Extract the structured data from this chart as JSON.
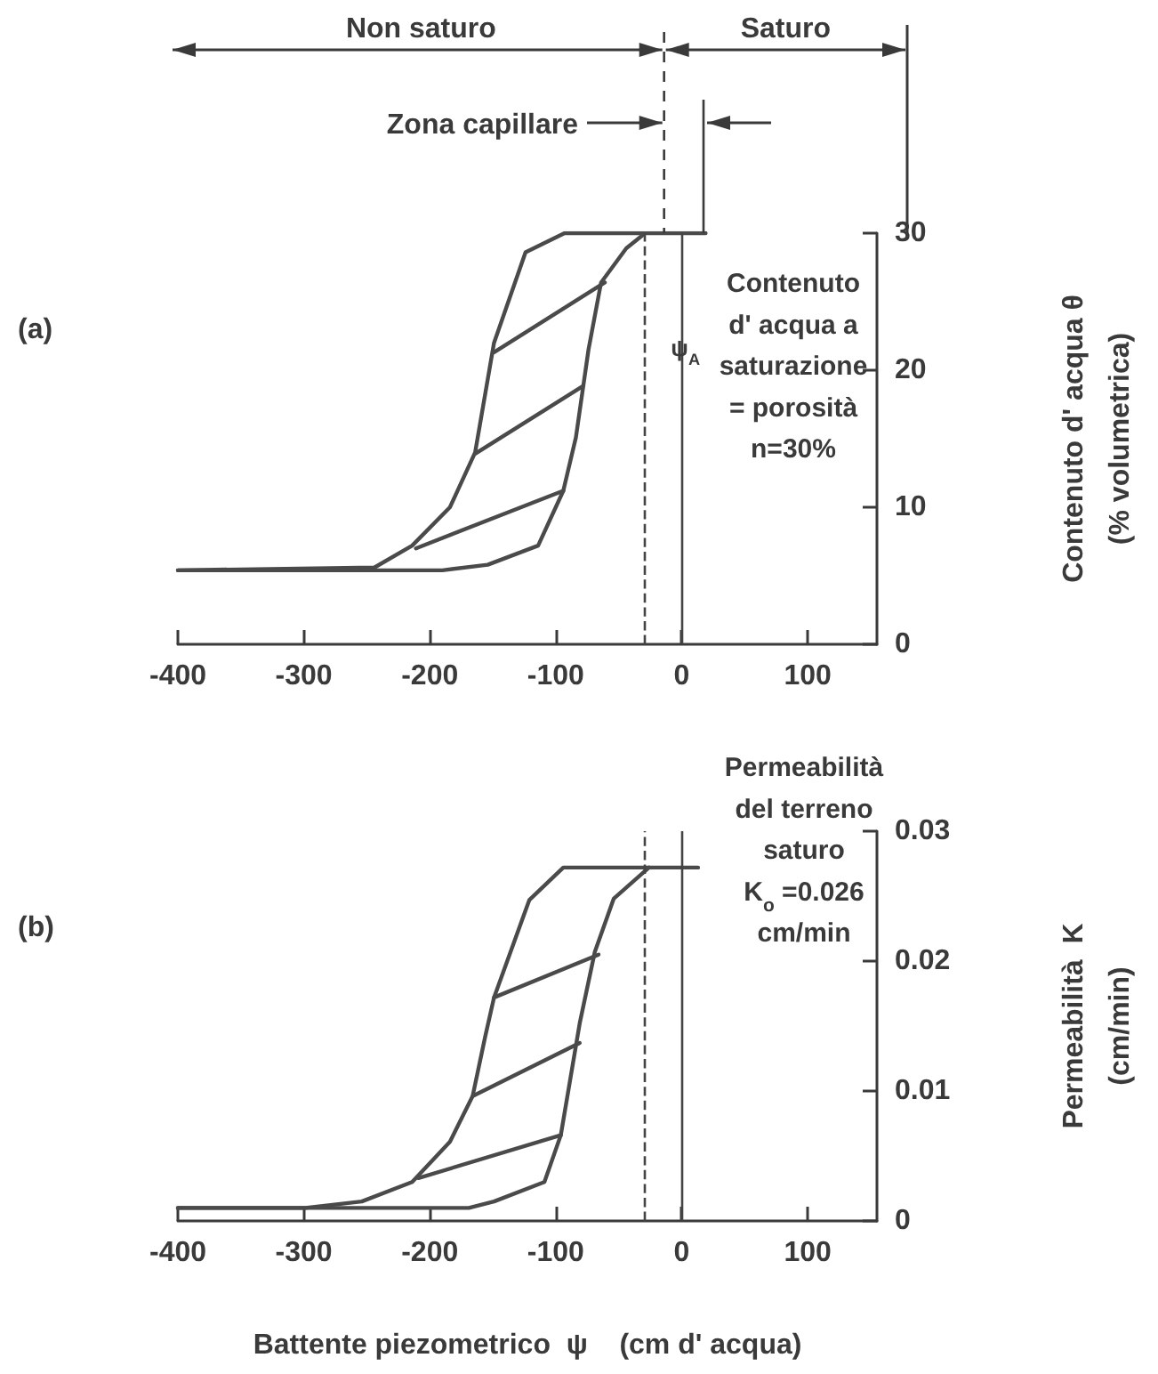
{
  "chart_data": [
    {
      "type": "line",
      "ylabel": "Contenuto d' acqua θ\n(% volumetrica)",
      "annotations": [
        "(a)",
        "Non saturo",
        "Saturo",
        "Zona capillare",
        "Contenuto\nd' acqua a\nsaturazione\n= porosità\nn=30%"
      ],
      "xlim": [
        -400,
        155
      ],
      "xticks": [
        -400,
        -300,
        -200,
        -100,
        0,
        100
      ],
      "ylim": [
        0,
        30
      ],
      "yticks": [
        0,
        10,
        20,
        30
      ],
      "grid": false,
      "marker": "none",
      "line_style": "solid",
      "ref_lines": [
        {
          "axis": "x",
          "value": -30,
          "label": "ψ$_{A}$",
          "line_style": "dashed",
          "color": "#444444"
        },
        {
          "axis": "x",
          "value": 0,
          "color": "#444444",
          "line_style": "solid"
        }
      ],
      "series": [
        {
          "color": "#4a4a4a",
          "x": [
            -400,
            -244,
            -214,
            -184,
            -164,
            -149,
            -124,
            -93,
            -30
          ],
          "values": [
            5.4,
            5.6,
            7.2,
            10,
            14,
            22,
            28.6,
            30,
            30
          ]
        },
        {
          "color": "#4a4a4a",
          "x": [
            -400,
            -190,
            -154,
            -114,
            -94,
            -84,
            -74,
            -64,
            -44,
            -29,
            19
          ],
          "values": [
            5.4,
            5.4,
            5.8,
            7.2,
            11.2,
            15.1,
            21.5,
            26.4,
            28.9,
            30,
            30
          ]
        },
        {
          "color": "#4a4a4a",
          "x": [
            -211,
            -94
          ],
          "values": [
            7,
            11.2
          ]
        },
        {
          "color": "#4a4a4a",
          "x": [
            -164,
            -79
          ],
          "values": [
            13.9,
            18.8
          ]
        },
        {
          "color": "#4a4a4a",
          "x": [
            -149,
            -61
          ],
          "values": [
            21.3,
            26.4
          ]
        }
      ]
    },
    {
      "type": "line",
      "xlabel": "Battente piezometrico  ψ    (cm d' acqua)",
      "ylabel": "Permeabilità  K\n(cm/min)",
      "annotations": [
        "(b)",
        "Permeabilità\ndel terreno\nsaturo\nK$_{o}$ =0.026\ncm/min"
      ],
      "xlim": [
        -400,
        155
      ],
      "xticks": [
        -400,
        -300,
        -200,
        -100,
        0,
        100
      ],
      "ylim": [
        0,
        0.03
      ],
      "yticks": [
        0,
        0.01,
        0.02,
        0.03
      ],
      "grid": false,
      "marker": "none",
      "line_style": "solid",
      "ref_lines": [
        {
          "axis": "x",
          "value": -30,
          "line_style": "dashed",
          "color": "#444444"
        },
        {
          "axis": "x",
          "value": 0,
          "color": "#444444",
          "line_style": "solid"
        }
      ],
      "series": [
        {
          "color": "#4a4a4a",
          "x": [
            -400,
            -299,
            -254,
            -214,
            -184,
            -166,
            -156,
            -149,
            -121,
            -94,
            13
          ],
          "values": [
            0.001,
            0.001,
            0.0015,
            0.003,
            0.0061,
            0.0096,
            0.0142,
            0.0172,
            0.0247,
            0.0272,
            0.0272
          ]
        },
        {
          "color": "#4a4a4a",
          "x": [
            -400,
            -169,
            -149,
            -109,
            -96,
            -89,
            -81,
            -69,
            -54,
            -26
          ],
          "values": [
            0.001,
            0.001,
            0.0015,
            0.003,
            0.0066,
            0.0106,
            0.0152,
            0.0207,
            0.0248,
            0.0272
          ]
        },
        {
          "color": "#4a4a4a",
          "x": [
            -209,
            -96
          ],
          "values": [
            0.0033,
            0.0066
          ]
        },
        {
          "color": "#4a4a4a",
          "x": [
            -166,
            -81
          ],
          "values": [
            0.0096,
            0.0137
          ]
        },
        {
          "color": "#4a4a4a",
          "x": [
            -149,
            -66
          ],
          "values": [
            0.0172,
            0.0205
          ]
        }
      ]
    }
  ]
}
